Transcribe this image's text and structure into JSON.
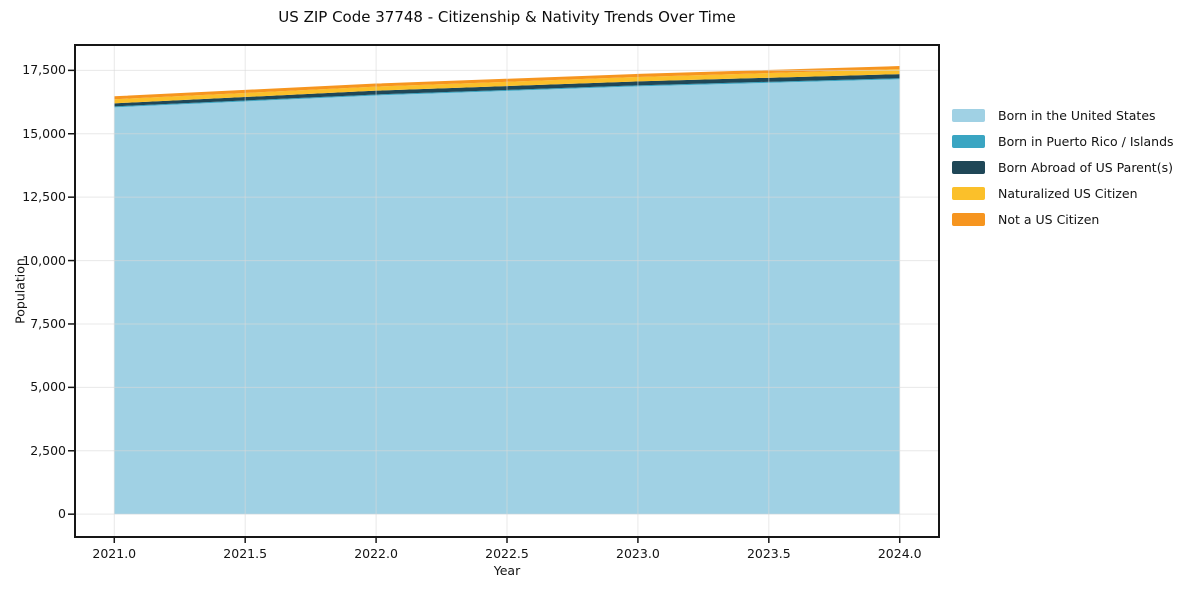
{
  "title": "US ZIP Code 37748 - Citizenship & Nativity Trends Over Time",
  "chart_data": {
    "type": "area",
    "stacked": true,
    "title": "US ZIP Code 37748 - Citizenship & Nativity Trends Over Time",
    "xlabel": "Year",
    "ylabel": "Population",
    "x": [
      2021,
      2022,
      2023,
      2024
    ],
    "series": [
      {
        "name": "Born in the United States",
        "color": "#A0D1E4",
        "values": [
          16040,
          16510,
          16870,
          17150
        ]
      },
      {
        "name": "Born in Puerto Rico / Islands",
        "color": "#3AA5C2",
        "values": [
          40,
          40,
          40,
          40
        ]
      },
      {
        "name": "Born Abroad of US Parent(s)",
        "color": "#1F4757",
        "values": [
          120,
          150,
          155,
          160
        ]
      },
      {
        "name": "Naturalized US Citizen",
        "color": "#FBC02A",
        "values": [
          160,
          160,
          175,
          200
        ]
      },
      {
        "name": "Not a US Citizen",
        "color": "#F6951F",
        "values": [
          120,
          120,
          120,
          120
        ]
      }
    ],
    "totals": [
      16480,
      16980,
      17360,
      17670
    ],
    "xlim": [
      2020.85,
      2024.15
    ],
    "ylim": [
      -900,
      18500
    ],
    "x_ticks": {
      "values": [
        2021.0,
        2021.5,
        2022.0,
        2022.5,
        2023.0,
        2023.5,
        2024.0
      ],
      "labels": [
        "2021.0",
        "2021.5",
        "2022.0",
        "2022.5",
        "2023.0",
        "2023.5",
        "2024.0"
      ]
    },
    "y_ticks": {
      "values": [
        0,
        2500,
        5000,
        7500,
        10000,
        12500,
        15000,
        17500
      ],
      "labels": [
        "0",
        "2,500",
        "5,000",
        "7,500",
        "10,000",
        "12,500",
        "15,000",
        "17,500"
      ]
    },
    "grid": true,
    "legend_position": "right"
  },
  "styles": {
    "grid_color": "#D8D8D8",
    "spine_color": "#161616",
    "text_color": "#141414",
    "background": "#FFFFFF"
  }
}
